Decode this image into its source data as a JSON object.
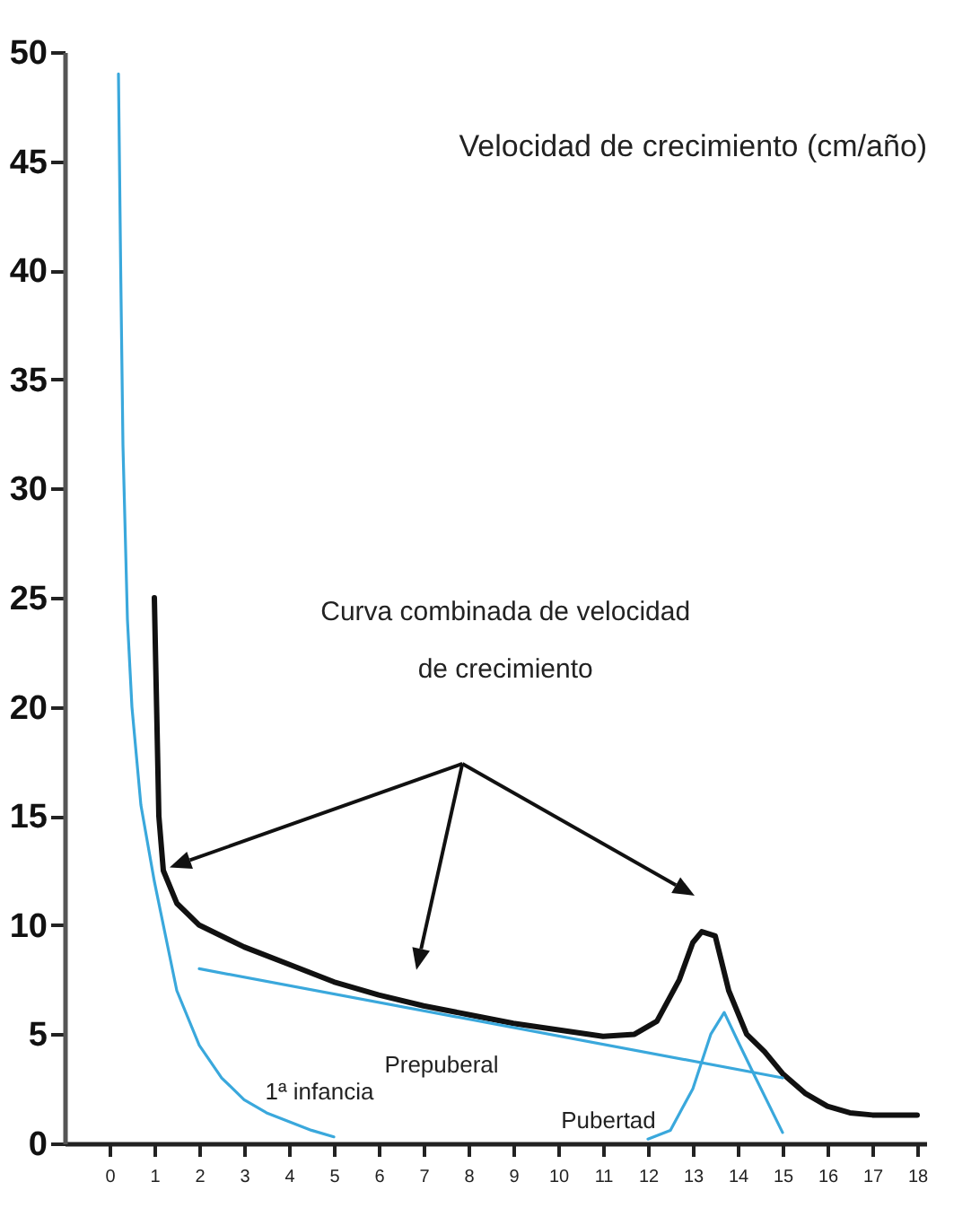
{
  "chart_data": {
    "type": "line",
    "title": "Velocidad de crecimiento (cm/año)",
    "xlim": [
      -1,
      18.2
    ],
    "xticks": [
      0,
      1,
      2,
      3,
      4,
      5,
      6,
      7,
      8,
      9,
      10,
      11,
      12,
      13,
      14,
      15,
      16,
      17,
      18
    ],
    "ylim": [
      0,
      50
    ],
    "yticks": [
      0,
      5,
      10,
      15,
      20,
      25,
      30,
      35,
      40,
      45,
      50
    ],
    "grid": false,
    "marker": "none",
    "line_style": "solid",
    "series": [
      {
        "color": "#111111",
        "x": [
          1,
          1.05,
          1.1,
          1.2,
          1.5,
          2,
          3,
          4,
          5,
          6,
          7,
          8,
          9,
          10,
          11,
          11.7,
          12.2,
          12.7,
          13,
          13.2,
          13.5,
          13.8,
          14.2,
          14.6,
          15,
          15.5,
          16,
          16.5,
          17,
          18
        ],
        "values": [
          25,
          20,
          15,
          12.5,
          11,
          10,
          9,
          8.2,
          7.4,
          6.8,
          6.3,
          5.9,
          5.5,
          5.2,
          4.9,
          5,
          5.6,
          7.5,
          9.2,
          9.7,
          9.5,
          7,
          5,
          4.2,
          3.2,
          2.3,
          1.7,
          1.4,
          1.3,
          1.3
        ]
      },
      {
        "name": "1ª infancia",
        "color": "#3aa8dc",
        "x": [
          0.2,
          0.25,
          0.3,
          0.4,
          0.5,
          0.7,
          1,
          1.5,
          2,
          2.5,
          3,
          3.5,
          4,
          4.5,
          5
        ],
        "values": [
          49,
          40,
          32,
          24,
          20,
          15.5,
          12,
          7,
          4.5,
          3,
          2,
          1.4,
          1,
          0.6,
          0.3
        ]
      },
      {
        "name": "Prepuberal",
        "color": "#3aa8dc",
        "x": [
          2,
          15
        ],
        "values": [
          8,
          3
        ]
      },
      {
        "name": "Pubertad",
        "color": "#3aa8dc",
        "x": [
          12,
          12.5,
          13,
          13.4,
          13.7,
          14,
          14.4,
          15
        ],
        "values": [
          0.2,
          0.6,
          2.5,
          5,
          6,
          4.7,
          3,
          0.5
        ]
      }
    ],
    "annotations": [
      "Curva combinada  de velocidad de crecimiento"
    ]
  }
}
